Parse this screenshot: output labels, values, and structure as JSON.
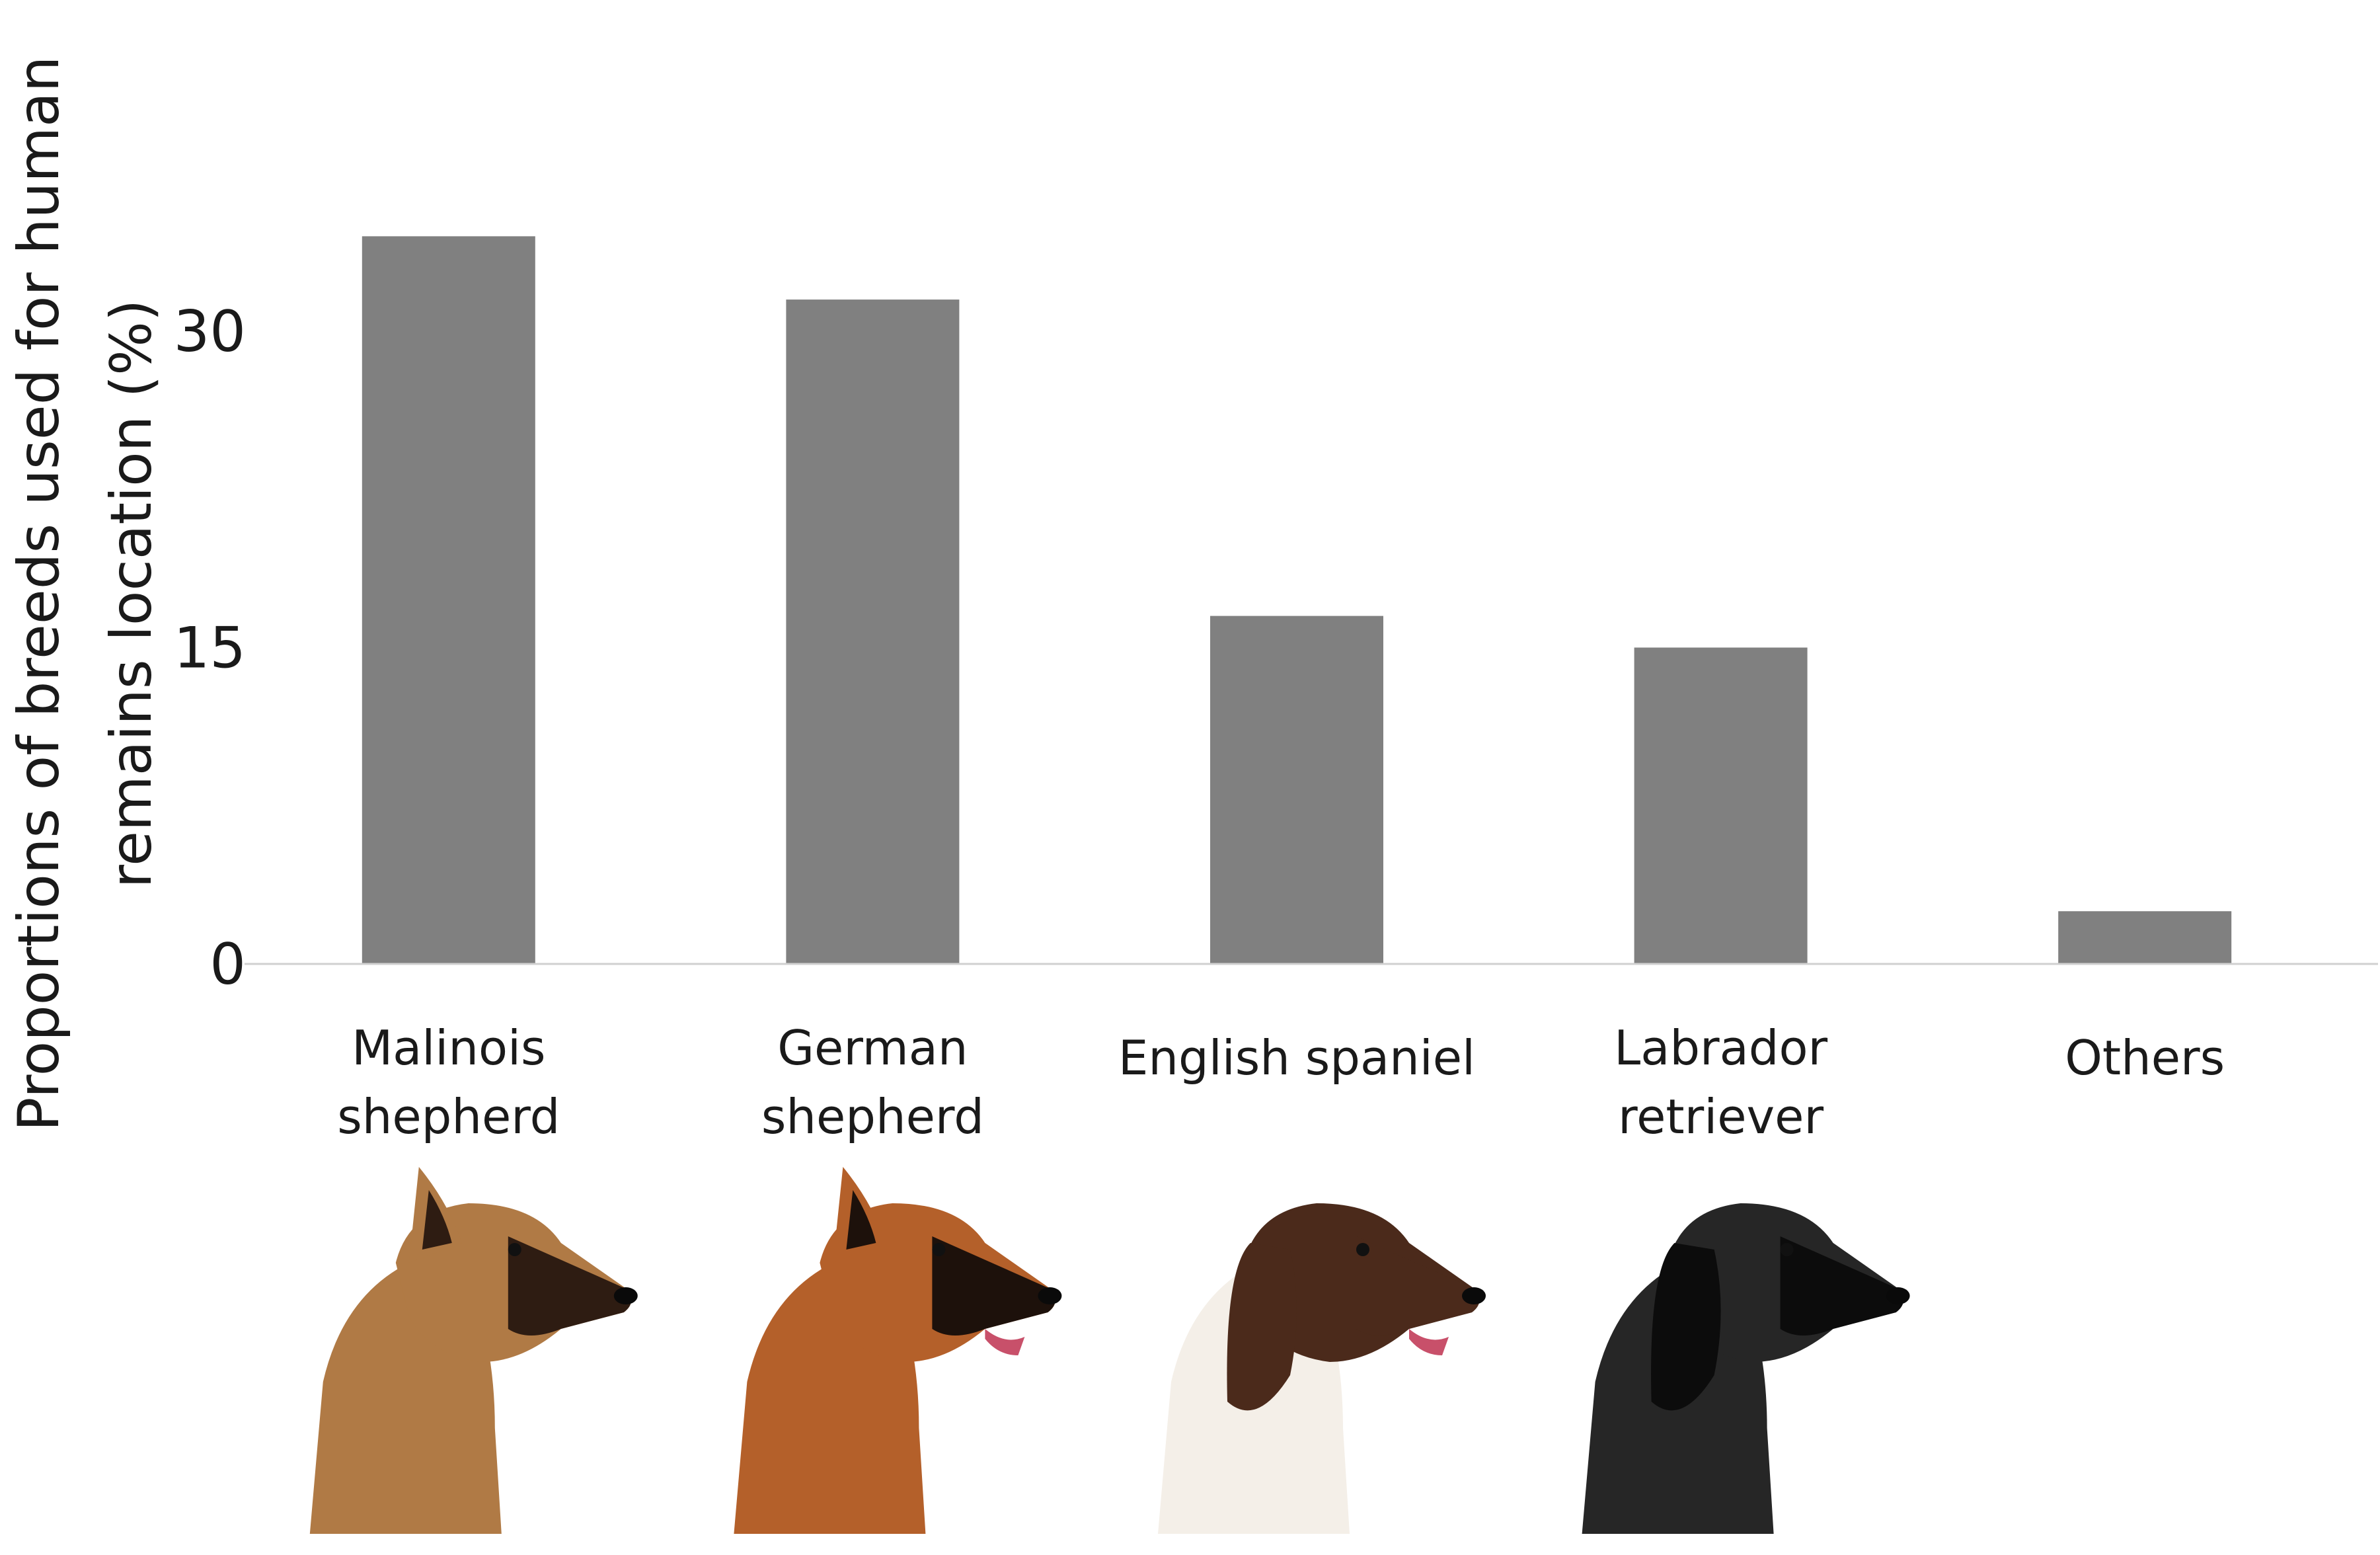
{
  "chart_data": {
    "type": "bar",
    "title": "",
    "ylabel_lines": [
      "Proportions of breeds used for human",
      "remains location (%)"
    ],
    "xlabel": "",
    "ylim": [
      0,
      41
    ],
    "yticks": [
      0,
      15,
      30
    ],
    "grid": false,
    "bar_color": "#808080",
    "categories": [
      {
        "lines": [
          "Malinois",
          "shepherd"
        ],
        "value": 34.5,
        "icon": "malinois-dog-photo",
        "coat": [
          "#b07a45",
          "#2e1c12"
        ]
      },
      {
        "lines": [
          "German",
          "shepherd"
        ],
        "value": 31.5,
        "icon": "german-shepherd-dog-photo",
        "coat": [
          "#b4602a",
          "#1d110b"
        ]
      },
      {
        "lines": [
          "English spaniel"
        ],
        "value": 16.5,
        "icon": "english-spaniel-dog-photo",
        "coat": [
          "#f4efe8",
          "#4b2a1b"
        ]
      },
      {
        "lines": [
          "Labrador",
          "retriever"
        ],
        "value": 15.0,
        "icon": "labrador-retriever-dog-photo",
        "coat": [
          "#262626",
          "#0c0c0c"
        ]
      },
      {
        "lines": [
          "Others"
        ],
        "value": 2.5
      }
    ]
  }
}
